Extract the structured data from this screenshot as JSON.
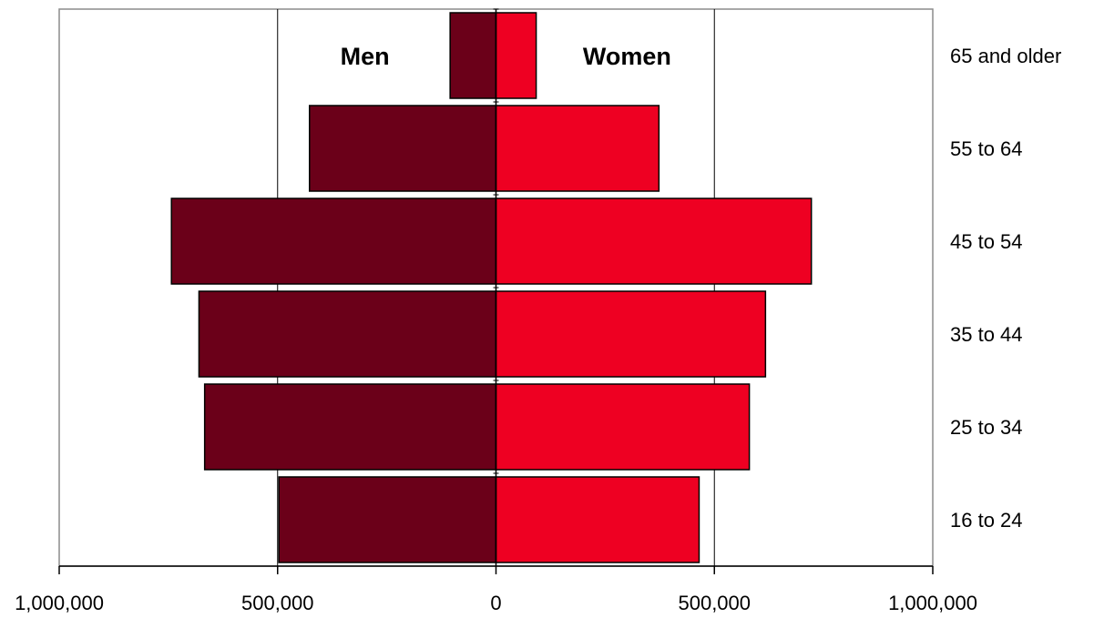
{
  "chart_data": {
    "type": "bar",
    "orientation": "horizontal",
    "layout": "population-pyramid",
    "categories": [
      "16 to 24",
      "25 to 34",
      "35 to 44",
      "45 to 54",
      "55 to 64",
      "65 and older"
    ],
    "series": [
      {
        "name": "Men",
        "side": "left",
        "color": "#6b0019",
        "values": [
          497000,
          667000,
          680000,
          743000,
          427000,
          105000
        ]
      },
      {
        "name": "Women",
        "side": "right",
        "color": "#ee0022",
        "values": [
          465000,
          580000,
          617000,
          722000,
          373000,
          92000
        ]
      }
    ],
    "xlim": [
      -1000000,
      1000000
    ],
    "x_ticks": [
      {
        "value": -1000000,
        "label": "1,000,000"
      },
      {
        "value": -500000,
        "label": "500,000"
      },
      {
        "value": 0,
        "label": "0"
      },
      {
        "value": 500000,
        "label": "500,000"
      },
      {
        "value": 1000000,
        "label": "1,000,000"
      }
    ],
    "grid": {
      "vertical": true,
      "gridline_values": [
        -500000,
        500000
      ]
    },
    "category_labels_position": "right",
    "title": "",
    "xlabel": "",
    "ylabel": ""
  }
}
